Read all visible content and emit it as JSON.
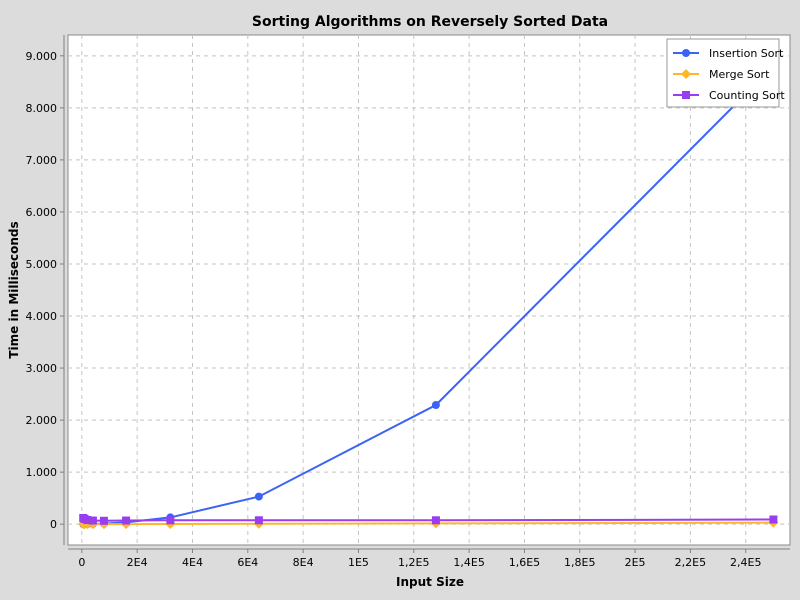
{
  "chart_data": {
    "type": "line",
    "title": "Sorting Algorithms on Reversely Sorted Data",
    "xlabel": "Input Size",
    "ylabel": "Time in Milliseconds",
    "xlim": [
      -5000,
      256000
    ],
    "ylim": [
      -400,
      9400
    ],
    "x_ticks": [
      0,
      20000,
      40000,
      60000,
      80000,
      100000,
      120000,
      140000,
      160000,
      180000,
      200000,
      220000,
      240000
    ],
    "x_tick_labels": [
      "0",
      "2E4",
      "4E4",
      "6E4",
      "8E4",
      "1E5",
      "1,2E5",
      "1,4E5",
      "1,6E5",
      "1,8E5",
      "2E5",
      "2,2E5",
      "2,4E5"
    ],
    "y_ticks": [
      0,
      1000,
      2000,
      3000,
      4000,
      5000,
      6000,
      7000,
      8000,
      9000
    ],
    "y_tick_labels": [
      "0",
      "1.000",
      "2.000",
      "3.000",
      "4.000",
      "5.000",
      "6.000",
      "7.000",
      "8.000",
      "9.000"
    ],
    "grid": true,
    "legend_position": "top-right",
    "series": [
      {
        "name": "Insertion Sort",
        "color": "#3b63f5",
        "marker": "circle",
        "x": [
          500,
          1000,
          2000,
          4000,
          8000,
          16000,
          32000,
          64000,
          128000,
          250000
        ],
        "y": [
          0,
          1,
          2,
          5,
          10,
          35,
          130,
          530,
          2290,
          8800
        ]
      },
      {
        "name": "Merge Sort",
        "color": "#ffb627",
        "marker": "diamond",
        "x": [
          500,
          1000,
          2000,
          4000,
          8000,
          16000,
          32000,
          64000,
          128000,
          250000
        ],
        "y": [
          0,
          0,
          0,
          0,
          1,
          2,
          4,
          8,
          15,
          30
        ]
      },
      {
        "name": "Counting Sort",
        "color": "#9a3cf0",
        "marker": "square",
        "x": [
          500,
          1000,
          2000,
          4000,
          8000,
          16000,
          32000,
          64000,
          128000,
          250000
        ],
        "y": [
          120,
          100,
          80,
          70,
          65,
          70,
          75,
          75,
          75,
          90
        ]
      }
    ]
  }
}
